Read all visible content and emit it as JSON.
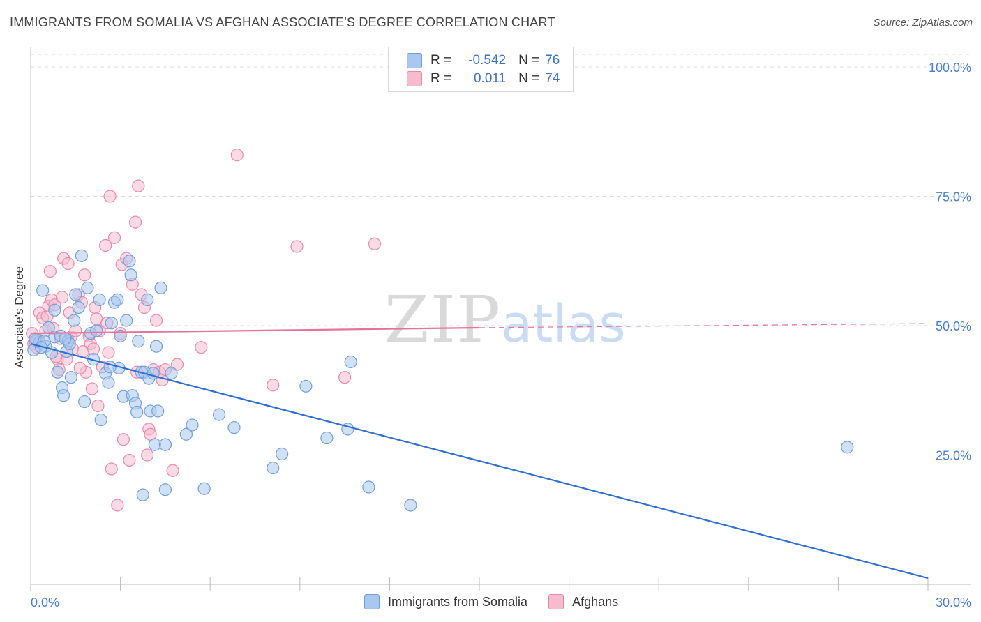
{
  "title": "IMMIGRANTS FROM SOMALIA VS AFGHAN ASSOCIATE'S DEGREE CORRELATION CHART",
  "source": "Source: ZipAtlas.com",
  "watermark": {
    "zip": "ZIP",
    "atlas": "atlas"
  },
  "colors": {
    "blue_fill": "#aac8ef",
    "blue_stroke": "#6f9fdc",
    "blue_line": "#2f6fd0",
    "pink_fill": "#f6bccd",
    "pink_stroke": "#e98aa8",
    "pink_line": "#e8739a",
    "grid": "#dcdcdc",
    "tick_text": "#4a7fc9"
  },
  "legend": {
    "rows": [
      {
        "r_label": "R =",
        "r_value": "-0.542",
        "n_label": "N =",
        "n_value": "76"
      },
      {
        "r_label": "R =",
        "r_value": "0.011",
        "n_label": "N =",
        "n_value": "74"
      }
    ]
  },
  "bottom_legend": [
    "Immigrants from Somalia",
    "Afghans"
  ],
  "chart_data": {
    "type": "scatter",
    "title": "IMMIGRANTS FROM SOMALIA VS AFGHAN ASSOCIATE'S DEGREE CORRELATION CHART",
    "xlabel": "",
    "ylabel": "Associate's Degree",
    "xlim": [
      0,
      30
    ],
    "ylim": [
      0,
      100
    ],
    "x_tick_labels": [
      "0.0%",
      "30.0%"
    ],
    "y_ticks": [
      25,
      50,
      75,
      100
    ],
    "y_tick_labels": [
      "25.0%",
      "50.0%",
      "75.0%",
      "100.0%"
    ],
    "series": [
      {
        "name": "Immigrants from Somalia",
        "r": -0.542,
        "n": 76,
        "trend": {
          "x": [
            0,
            30
          ],
          "y": [
            46.5,
            1.2
          ],
          "dashed_from": null
        },
        "points": [
          [
            0.1,
            45.3
          ],
          [
            0.2,
            47.2
          ],
          [
            0.3,
            46.8
          ],
          [
            0.4,
            56.8
          ],
          [
            0.5,
            46.0
          ],
          [
            0.6,
            49.6
          ],
          [
            0.7,
            44.8
          ],
          [
            0.8,
            47.8
          ],
          [
            0.8,
            53.0
          ],
          [
            0.9,
            41.0
          ],
          [
            1.0,
            48.0
          ],
          [
            1.05,
            38.0
          ],
          [
            1.1,
            36.5
          ],
          [
            1.2,
            45.0
          ],
          [
            1.25,
            47.0
          ],
          [
            1.3,
            46.5
          ],
          [
            1.35,
            40.0
          ],
          [
            1.45,
            51.0
          ],
          [
            1.5,
            56.0
          ],
          [
            1.6,
            53.5
          ],
          [
            1.7,
            63.5
          ],
          [
            1.8,
            35.3
          ],
          [
            1.9,
            57.3
          ],
          [
            2.0,
            48.5
          ],
          [
            2.1,
            43.5
          ],
          [
            2.2,
            49.0
          ],
          [
            2.3,
            55.0
          ],
          [
            2.35,
            31.8
          ],
          [
            2.5,
            40.8
          ],
          [
            2.6,
            39.0
          ],
          [
            2.7,
            50.5
          ],
          [
            2.8,
            54.5
          ],
          [
            2.9,
            55.0
          ],
          [
            2.95,
            41.8
          ],
          [
            3.0,
            48.0
          ],
          [
            3.1,
            36.3
          ],
          [
            3.2,
            51.0
          ],
          [
            3.3,
            62.5
          ],
          [
            3.35,
            59.8
          ],
          [
            3.4,
            36.5
          ],
          [
            3.5,
            35.0
          ],
          [
            3.55,
            33.3
          ],
          [
            3.6,
            47.0
          ],
          [
            3.7,
            41.0
          ],
          [
            3.75,
            17.3
          ],
          [
            3.8,
            41.0
          ],
          [
            3.9,
            55.0
          ],
          [
            3.95,
            39.8
          ],
          [
            4.0,
            33.5
          ],
          [
            4.1,
            40.8
          ],
          [
            4.15,
            27.0
          ],
          [
            4.2,
            46.0
          ],
          [
            4.25,
            33.5
          ],
          [
            4.35,
            57.3
          ],
          [
            4.5,
            27.0
          ],
          [
            4.5,
            18.3
          ],
          [
            4.7,
            40.8
          ],
          [
            5.2,
            29.0
          ],
          [
            5.4,
            30.8
          ],
          [
            5.8,
            18.5
          ],
          [
            6.3,
            32.8
          ],
          [
            6.8,
            30.3
          ],
          [
            8.1,
            22.5
          ],
          [
            8.4,
            25.2
          ],
          [
            9.2,
            38.3
          ],
          [
            9.9,
            28.3
          ],
          [
            10.6,
            30.0
          ],
          [
            11.3,
            18.8
          ],
          [
            12.7,
            15.3
          ],
          [
            27.3,
            26.5
          ],
          [
            0.15,
            47.5
          ],
          [
            0.45,
            47.0
          ],
          [
            1.15,
            47.5
          ],
          [
            2.65,
            42.0
          ],
          [
            10.7,
            43.0
          ],
          [
            0.35,
            45.8
          ]
        ]
      },
      {
        "name": "Afghans",
        "r": 0.011,
        "n": 74,
        "trend": {
          "x": [
            0,
            15
          ],
          "y": [
            48.5,
            49.6
          ],
          "dashed_to": [
            30,
            50.4
          ]
        },
        "points": [
          [
            0.05,
            48.5
          ],
          [
            0.1,
            46.5
          ],
          [
            0.15,
            47.0
          ],
          [
            0.2,
            45.8
          ],
          [
            0.3,
            52.5
          ],
          [
            0.4,
            51.5
          ],
          [
            0.5,
            49.0
          ],
          [
            0.55,
            51.8
          ],
          [
            0.6,
            53.8
          ],
          [
            0.65,
            60.5
          ],
          [
            0.7,
            55.0
          ],
          [
            0.75,
            49.5
          ],
          [
            0.8,
            54.0
          ],
          [
            0.9,
            43.5
          ],
          [
            0.95,
            41.5
          ],
          [
            1.0,
            47.5
          ],
          [
            1.05,
            55.5
          ],
          [
            1.1,
            63.0
          ],
          [
            1.2,
            43.5
          ],
          [
            1.25,
            62.0
          ],
          [
            1.3,
            52.5
          ],
          [
            1.35,
            47.8
          ],
          [
            1.4,
            45.5
          ],
          [
            1.5,
            49.0
          ],
          [
            1.6,
            56.0
          ],
          [
            1.7,
            54.5
          ],
          [
            1.75,
            45.0
          ],
          [
            1.8,
            59.8
          ],
          [
            1.85,
            41.0
          ],
          [
            1.95,
            48.0
          ],
          [
            2.0,
            46.5
          ],
          [
            2.05,
            37.8
          ],
          [
            2.1,
            45.5
          ],
          [
            2.15,
            53.5
          ],
          [
            2.2,
            51.3
          ],
          [
            2.25,
            34.5
          ],
          [
            2.3,
            49.0
          ],
          [
            2.4,
            42.0
          ],
          [
            2.5,
            65.5
          ],
          [
            2.55,
            50.5
          ],
          [
            2.6,
            44.8
          ],
          [
            2.65,
            75.0
          ],
          [
            2.7,
            22.3
          ],
          [
            2.8,
            67.0
          ],
          [
            2.9,
            15.3
          ],
          [
            3.0,
            48.5
          ],
          [
            3.05,
            61.8
          ],
          [
            3.1,
            28.0
          ],
          [
            3.2,
            63.0
          ],
          [
            3.3,
            24.0
          ],
          [
            3.4,
            58.0
          ],
          [
            3.5,
            70.0
          ],
          [
            3.55,
            41.0
          ],
          [
            3.6,
            77.0
          ],
          [
            3.7,
            56.0
          ],
          [
            3.8,
            53.5
          ],
          [
            3.9,
            25.0
          ],
          [
            3.95,
            30.0
          ],
          [
            4.0,
            29.0
          ],
          [
            4.1,
            41.5
          ],
          [
            4.2,
            51.0
          ],
          [
            4.3,
            41.0
          ],
          [
            4.4,
            39.5
          ],
          [
            4.5,
            41.5
          ],
          [
            4.75,
            22.0
          ],
          [
            4.9,
            42.5
          ],
          [
            5.7,
            45.8
          ],
          [
            6.9,
            83.0
          ],
          [
            8.1,
            38.5
          ],
          [
            8.9,
            65.3
          ],
          [
            10.5,
            40.0
          ],
          [
            11.5,
            65.8
          ],
          [
            1.65,
            41.8
          ],
          [
            0.85,
            44.0
          ]
        ]
      }
    ]
  }
}
